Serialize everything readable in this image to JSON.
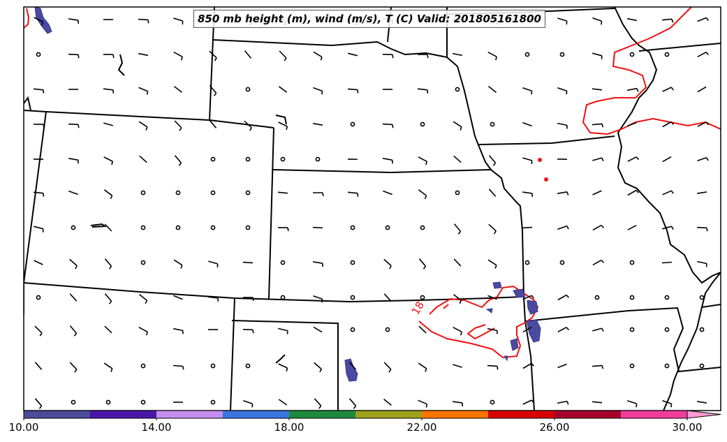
{
  "map": {
    "title": "850 mb height (m), wind (m/s), T (C) Valid: 201805161800",
    "contour_label": "18",
    "contour_color": "#ee1111",
    "border_color": "#000000",
    "precip_color": "#4a4aa0"
  },
  "colorbar": {
    "colors": [
      "#4b4b9b",
      "#4a16a8",
      "#c48ef0",
      "#3a74e0",
      "#1e8a3e",
      "#9fa01c",
      "#ff7300",
      "#d80000",
      "#a8002a",
      "#f03d9c",
      "#ff9ad2"
    ],
    "tick_labels": [
      "10.00",
      "14.00",
      "18.00",
      "22.00",
      "26.00",
      "30.00"
    ],
    "min": 10,
    "max": 30,
    "extend": "max"
  }
}
